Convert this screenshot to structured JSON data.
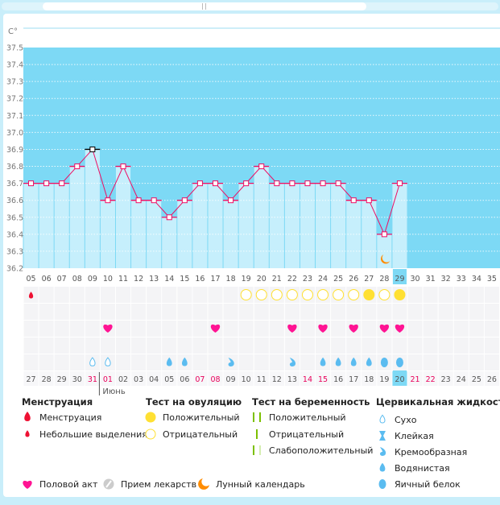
{
  "unit_label": "C°",
  "colors": {
    "plot_bg": "#7dd9f5",
    "bar": "#c6effc",
    "line": "#ee0e63",
    "highlight": "#7dd9f5",
    "weekend": "#e8005a",
    "ovulation": "#ffe033",
    "heart": "#ff1493",
    "fluid": "#5bbcf0",
    "moon": "#ff8c00"
  },
  "chart_data": {
    "type": "line",
    "ylim": [
      36.2,
      37.5
    ],
    "yticks": [
      "37.5",
      "37.4",
      "37.3",
      "37.2",
      "37.1",
      "37.0",
      "36.9",
      "36.8",
      "36.7",
      "36.6",
      "36.5",
      "36.4",
      "36.3",
      "36.2"
    ],
    "cycle_days": [
      "05",
      "06",
      "07",
      "08",
      "09",
      "10",
      "11",
      "12",
      "13",
      "14",
      "15",
      "16",
      "17",
      "18",
      "19",
      "20",
      "21",
      "22",
      "23",
      "24",
      "25",
      "26",
      "27",
      "28",
      "29",
      "30",
      "31",
      "32",
      "33",
      "34",
      "35"
    ],
    "temperatures": [
      36.7,
      36.7,
      36.7,
      36.8,
      36.9,
      36.6,
      36.8,
      36.6,
      36.6,
      36.5,
      36.6,
      36.7,
      36.7,
      36.6,
      36.7,
      36.8,
      36.7,
      36.7,
      36.7,
      36.7,
      36.7,
      36.6,
      36.6,
      36.4,
      36.7
    ],
    "highlighted_marker_day": "09",
    "current_day": "29",
    "moon_day": "28"
  },
  "rows": {
    "menstruation": {
      "05": "spotting"
    },
    "ovulation_test": {
      "19": "negative",
      "20": "negative",
      "21": "negative",
      "22": "negative",
      "23": "negative",
      "24": "negative",
      "25": "negative",
      "26": "negative",
      "27": "positive",
      "28": "negative",
      "29": "positive"
    },
    "intercourse": [
      "10",
      "17",
      "22",
      "24",
      "26",
      "28",
      "29"
    ],
    "cervical_fluid": {
      "09": "dry",
      "10": "dry",
      "14": "watery",
      "15": "watery",
      "18": "creamy",
      "22": "creamy",
      "24": "watery",
      "25": "watery",
      "26": "watery",
      "27": "watery",
      "28": "egg-white",
      "29": "egg-white"
    }
  },
  "dates": [
    "27",
    "28",
    "29",
    "30",
    "31",
    "01",
    "02",
    "03",
    "04",
    "05",
    "06",
    "07",
    "08",
    "09",
    "10",
    "11",
    "12",
    "13",
    "14",
    "15",
    "16",
    "17",
    "18",
    "19",
    "20",
    "21",
    "22",
    "23",
    "24",
    "25",
    "26"
  ],
  "weekend_dates": [
    "31",
    "01",
    "07",
    "08",
    "14",
    "15",
    "21",
    "22"
  ],
  "month_label": "Июнь",
  "legend": {
    "menstruation": {
      "title": "Менструация",
      "items": [
        "Менструация",
        "Небольшие выделения"
      ]
    },
    "ovulation": {
      "title": "Тест на овуляцию",
      "items": [
        "Положительный",
        "Отрицательный"
      ]
    },
    "pregnancy": {
      "title": "Тест на беременность",
      "items": [
        "Положительный",
        "Отрицательный",
        "Слабоположительный"
      ]
    },
    "fluid": {
      "title": "Цервикальная жидкость",
      "items": [
        "Сухо",
        "Клейкая",
        "Кремообразная",
        "Водянистая",
        "Яичный белок"
      ]
    },
    "other": [
      "Половой акт",
      "Прием лекарств",
      "Лунный календарь"
    ]
  }
}
